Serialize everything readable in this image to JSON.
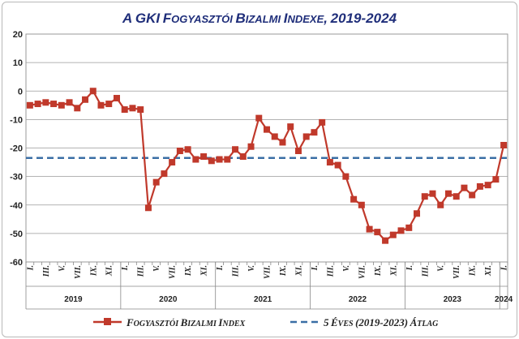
{
  "chart_data": {
    "type": "line",
    "title": "A GKI fogyasztói bizalmi indexe, 2019-2024",
    "ylim": [
      -60,
      20
    ],
    "yticks": [
      "20",
      "10",
      "0",
      "-10",
      "-20",
      "-30",
      "-40",
      "-50",
      "-60"
    ],
    "month_ticks": [
      "I.",
      "III.",
      "V.",
      "VII.",
      "IX.",
      "XI."
    ],
    "years": [
      "2019",
      "2020",
      "2021",
      "2022",
      "2023",
      "2024"
    ],
    "grid": true,
    "legend_position": "bottom",
    "series": [
      {
        "name": "Fogyasztói bizalmi index",
        "color": "#c0392b",
        "values": [
          -5,
          -4.5,
          -4,
          -4.5,
          -5,
          -4,
          -6,
          -3,
          0,
          -5,
          -4.5,
          -2.5,
          -6.5,
          -6,
          -6.5,
          -41,
          -32,
          -29,
          -25,
          -21,
          -20.5,
          -24,
          -23,
          -24.5,
          -24,
          -24,
          -20.5,
          -23,
          -19.5,
          -9.5,
          -13.5,
          -16,
          -18,
          -12.5,
          -21,
          -16,
          -14.5,
          -11,
          -25,
          -26,
          -30,
          -38,
          -40,
          -48.5,
          -49.5,
          -52.5,
          -50.5,
          -49,
          -48,
          -43,
          -37,
          -36,
          -40,
          -36,
          -37,
          -34,
          -36.5,
          -33.5,
          -33,
          -31,
          -19
        ]
      },
      {
        "name": "5 éves (2019-2023) átlag",
        "color": "#3a6ea5",
        "values": [
          -23.5,
          -23.5
        ]
      }
    ]
  }
}
